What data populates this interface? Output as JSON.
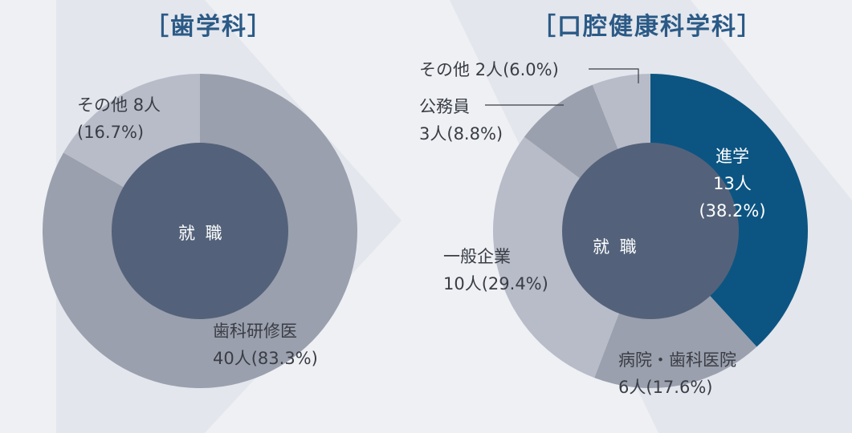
{
  "colors": {
    "background": "#eef0f4",
    "chevron": "#dde1e8",
    "title": "#2b5a86",
    "center_disc": "#53627a",
    "label_text": "#3a3d45",
    "highlight": "#0c5582"
  },
  "chart_data": [
    {
      "type": "pie",
      "title": "［歯学科］",
      "center_label": "就 職",
      "slices": [
        {
          "name": "歯科研修医",
          "count_label": "40人",
          "pct_label": "(83.3%)",
          "value": 83.3,
          "color": "#9aa0ad"
        },
        {
          "name": "その他",
          "count_label": "8人",
          "pct_label": "(16.7%)",
          "value": 16.7,
          "color": "#b7bcc8"
        }
      ]
    },
    {
      "type": "pie",
      "title": "［口腔健康科学科］",
      "center_label": "就 職",
      "slices": [
        {
          "name": "進学",
          "count_label": "13人",
          "pct_label": "(38.2%)",
          "value": 38.2,
          "color": "#0c5582"
        },
        {
          "name": "病院・歯科医院",
          "count_label": "6人",
          "pct_label": "(17.6%)",
          "value": 17.6,
          "color": "#9aa0ad"
        },
        {
          "name": "一般企業",
          "count_label": "10人",
          "pct_label": "(29.4%)",
          "value": 29.4,
          "color": "#b7bcc8"
        },
        {
          "name": "公務員",
          "count_label": "3人",
          "pct_label": "(8.8%)",
          "value": 8.8,
          "color": "#9aa0ad"
        },
        {
          "name": "その他",
          "count_label": "2人",
          "pct_label": "(6.0%)",
          "value": 6.0,
          "color": "#b7bcc8"
        }
      ]
    }
  ]
}
